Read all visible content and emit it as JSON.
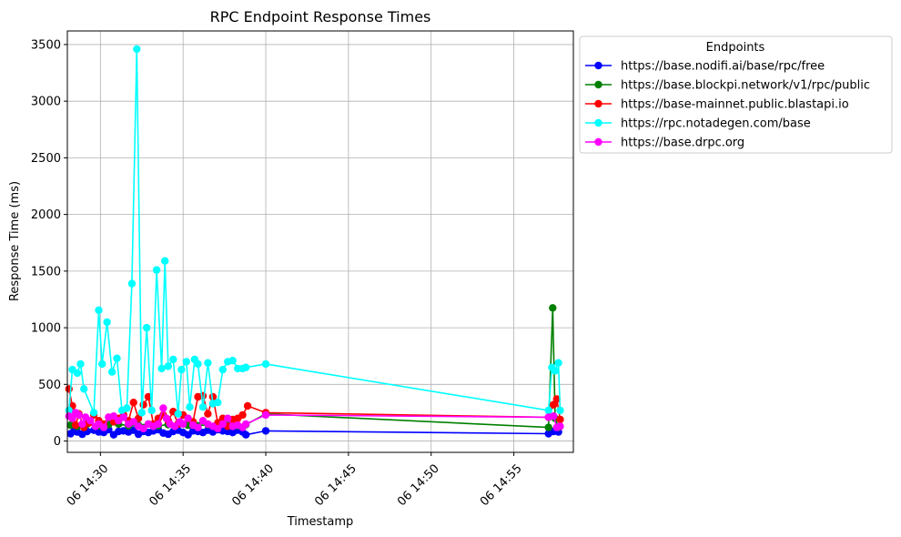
{
  "chart_data": {
    "type": "line",
    "title": "RPC Endpoint Response Times",
    "xlabel": "Timestamp",
    "ylabel": "Response Time (ms)",
    "x_tick_labels": [
      "06 14:30",
      "06 14:35",
      "06 14:40",
      "06 14:45",
      "06 14:50",
      "06 14:55"
    ],
    "x_tick_values": [
      30,
      35,
      40,
      45,
      50,
      55
    ],
    "x_unit": "minutes past 14:00",
    "xlim": [
      28.0,
      58.6
    ],
    "y_ticks": [
      0,
      500,
      1000,
      1500,
      2000,
      2500,
      3000,
      3500
    ],
    "ylim": [
      -100,
      3620
    ],
    "grid": true,
    "legend": {
      "title": "Endpoints",
      "placement": "outside-right"
    },
    "series": [
      {
        "name": "https://base.nodifi.ai/base/rpc/free",
        "color": "#0000ff",
        "x": [
          28.2,
          28.4,
          28.6,
          28.9,
          29.2,
          29.6,
          29.9,
          30.2,
          30.5,
          30.8,
          31.1,
          31.4,
          31.7,
          32.0,
          32.3,
          32.6,
          32.9,
          33.2,
          33.5,
          33.8,
          34.1,
          34.4,
          34.7,
          35.0,
          35.3,
          35.6,
          35.9,
          36.2,
          36.5,
          36.8,
          37.1,
          37.4,
          37.7,
          38.0,
          38.3,
          38.6,
          38.8,
          40.0,
          57.1,
          57.4,
          57.7
        ],
        "y": [
          65,
          90,
          80,
          60,
          85,
          95,
          80,
          75,
          100,
          55,
          85,
          90,
          80,
          95,
          60,
          85,
          75,
          90,
          100,
          70,
          60,
          85,
          95,
          75,
          55,
          90,
          85,
          75,
          95,
          80,
          100,
          90,
          85,
          75,
          95,
          80,
          55,
          90,
          65,
          85,
          80
        ]
      },
      {
        "name": "https://base.blockpi.network/v1/rpc/public",
        "color": "#008000",
        "x": [
          28.2,
          28.6,
          29.2,
          29.9,
          30.5,
          31.1,
          31.7,
          32.3,
          32.9,
          33.5,
          34.1,
          34.7,
          35.3,
          35.9,
          36.5,
          37.1,
          37.7,
          38.3,
          38.8,
          40.0,
          57.1,
          57.35,
          57.5,
          57.7
        ],
        "y": [
          140,
          130,
          150,
          135,
          145,
          150,
          135,
          140,
          150,
          135,
          145,
          150,
          140,
          135,
          145,
          150,
          140,
          135,
          145,
          240,
          120,
          1175,
          200,
          120
        ]
      },
      {
        "name": "https://base-mainnet.public.blastapi.io",
        "color": "#ff0000",
        "x": [
          28.1,
          28.3,
          28.5,
          28.7,
          29.0,
          29.3,
          29.6,
          29.9,
          30.2,
          30.5,
          30.8,
          31.1,
          31.4,
          31.7,
          32.0,
          32.3,
          32.6,
          32.9,
          33.2,
          33.5,
          33.8,
          34.1,
          34.4,
          34.7,
          35.0,
          35.3,
          35.6,
          35.9,
          36.2,
          36.5,
          36.8,
          37.1,
          37.4,
          37.7,
          38.0,
          38.3,
          38.6,
          38.9,
          40.0,
          57.1,
          57.4,
          57.6,
          57.8
        ],
        "y": [
          460,
          310,
          140,
          240,
          120,
          160,
          230,
          180,
          150,
          210,
          170,
          200,
          230,
          180,
          340,
          200,
          320,
          390,
          150,
          200,
          230,
          180,
          260,
          150,
          230,
          200,
          170,
          390,
          400,
          240,
          390,
          160,
          200,
          130,
          190,
          200,
          230,
          310,
          250,
          210,
          320,
          370,
          190
        ]
      },
      {
        "name": "https://rpc.notadegen.com/base",
        "color": "#00ffff",
        "x": [
          28.1,
          28.3,
          28.6,
          28.8,
          29.0,
          29.6,
          29.9,
          30.1,
          30.4,
          30.7,
          31.0,
          31.3,
          31.6,
          31.9,
          32.2,
          32.5,
          32.8,
          33.1,
          33.4,
          33.7,
          33.9,
          34.1,
          34.4,
          34.7,
          34.9,
          35.2,
          35.4,
          35.7,
          35.9,
          36.2,
          36.5,
          36.8,
          37.1,
          37.4,
          37.7,
          38.0,
          38.3,
          38.6,
          38.8,
          40.0,
          57.1,
          57.3,
          57.5,
          57.7,
          57.8
        ],
        "y": [
          270,
          630,
          600,
          680,
          460,
          250,
          1155,
          680,
          1050,
          610,
          730,
          270,
          290,
          1390,
          3460,
          250,
          1000,
          270,
          1510,
          640,
          1590,
          660,
          720,
          240,
          630,
          700,
          300,
          720,
          680,
          300,
          690,
          330,
          340,
          630,
          700,
          710,
          640,
          640,
          650,
          680,
          270,
          650,
          620,
          690,
          270
        ]
      },
      {
        "name": "https://base.drpc.org",
        "color": "#ff00ff",
        "x": [
          28.1,
          28.3,
          28.5,
          28.7,
          28.9,
          29.1,
          29.4,
          29.7,
          29.9,
          30.2,
          30.5,
          30.8,
          31.1,
          31.4,
          31.7,
          32.0,
          32.3,
          32.6,
          32.9,
          33.2,
          33.5,
          33.8,
          34.0,
          34.2,
          34.5,
          34.8,
          35.0,
          35.3,
          35.6,
          35.9,
          36.2,
          36.5,
          36.8,
          37.1,
          37.4,
          37.7,
          38.0,
          38.3,
          38.6,
          38.8,
          40.0,
          57.1,
          57.4,
          57.6,
          57.8
        ],
        "y": [
          220,
          200,
          250,
          230,
          150,
          210,
          180,
          130,
          150,
          120,
          210,
          220,
          180,
          210,
          150,
          170,
          130,
          110,
          150,
          130,
          150,
          290,
          200,
          150,
          130,
          170,
          150,
          200,
          140,
          120,
          180,
          150,
          130,
          110,
          150,
          200,
          130,
          140,
          120,
          150,
          230,
          210,
          220,
          120,
          130
        ]
      }
    ]
  }
}
